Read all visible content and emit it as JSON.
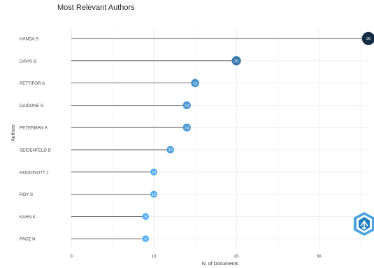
{
  "chart_data": {
    "type": "lollipop",
    "title": "Most Relevant Authors",
    "xlabel": "N. of Documents",
    "ylabel": "Authors",
    "xlim": [
      0,
      36
    ],
    "xticks": [
      0,
      10,
      20,
      30
    ],
    "grid": true,
    "categories": [
      "HANDA S",
      "DAVIS B",
      "PETTIFOR A",
      "DAIDONE S",
      "PETERMAN A",
      "SEIDENFELD D",
      "HODDINOTT J",
      "ROY S",
      "KAHN K",
      "PACE N"
    ],
    "values": [
      36,
      20,
      15,
      14,
      14,
      12,
      10,
      10,
      9,
      9
    ],
    "color_scale": [
      "#132b43",
      "#56b1f7"
    ]
  },
  "logo_icon": "bibliometrix-logo-icon"
}
